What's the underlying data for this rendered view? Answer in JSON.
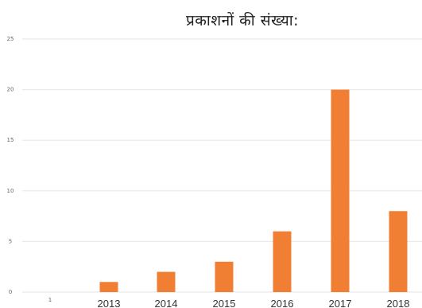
{
  "chart_data": {
    "type": "bar",
    "title": "प्रकाशनों की संख्या:",
    "categories": [
      "1",
      "2013",
      "2014",
      "2015",
      "2016",
      "2017",
      "2018"
    ],
    "values": [
      0,
      1,
      2,
      3,
      6,
      20,
      8
    ],
    "ylim": [
      0,
      25
    ],
    "yticks": [
      0,
      5,
      10,
      15,
      20,
      25
    ],
    "grid": true,
    "colors": {
      "bar": "#f07f34",
      "grid": "#e6e6e6"
    }
  }
}
